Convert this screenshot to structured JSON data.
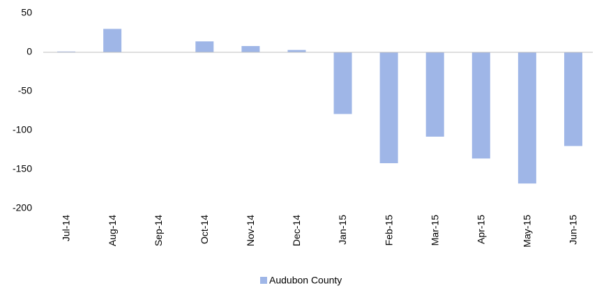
{
  "chart_data": {
    "type": "bar",
    "categories": [
      "Jul-14",
      "Aug-14",
      "Sep-14",
      "Oct-14",
      "Nov-14",
      "Dec-14",
      "Jan-15",
      "Feb-15",
      "Mar-15",
      "Apr-15",
      "May-15",
      "Jun-15"
    ],
    "series": [
      {
        "name": "Audubon County",
        "color": "#9fb6e7",
        "values": [
          1,
          30,
          0,
          14,
          8,
          3,
          -79,
          -142,
          -108,
          -136,
          -168,
          -120
        ]
      }
    ],
    "ylim": [
      -200,
      50
    ],
    "yticks": [
      -200,
      -150,
      -100,
      -50,
      0,
      50
    ],
    "grid": false,
    "legend": "bottom"
  }
}
